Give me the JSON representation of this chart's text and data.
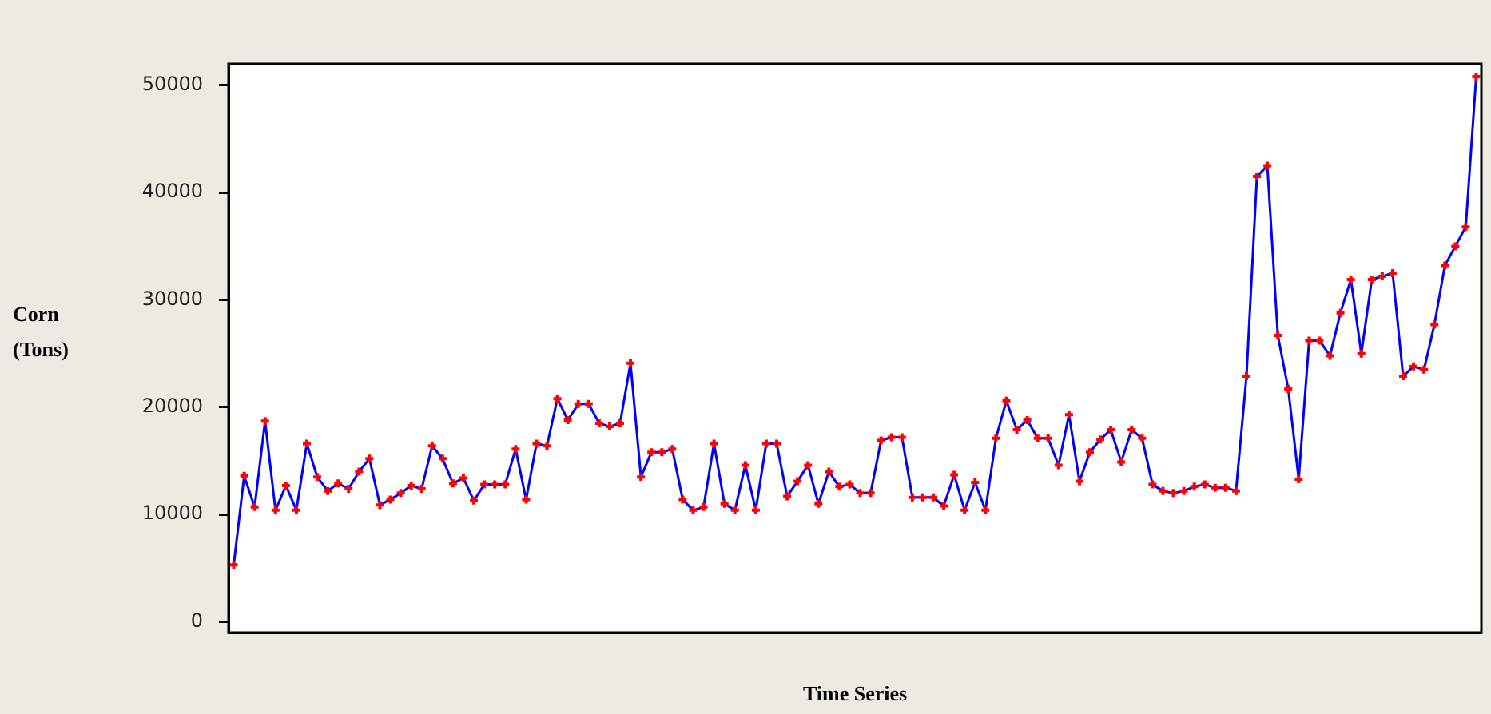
{
  "chart_data": {
    "type": "line",
    "xlabel": "Time Series",
    "ylabel": "Corn (Tons)",
    "categories": [
      null,
      null,
      null,
      null,
      null,
      null,
      null,
      null,
      null,
      null,
      null,
      null,
      null,
      null,
      null,
      null,
      null,
      null,
      null,
      null,
      null,
      null,
      null,
      null,
      null,
      null,
      null,
      null,
      null,
      null,
      null,
      null,
      null,
      null,
      null,
      null,
      null,
      null,
      null,
      null,
      null,
      null,
      null,
      null,
      null,
      null,
      null,
      null,
      null,
      null,
      null,
      null,
      null,
      null,
      null,
      null,
      null,
      null,
      null,
      null,
      null,
      null,
      null,
      null,
      null,
      null,
      null,
      null,
      null,
      null,
      null,
      null,
      null,
      null,
      null,
      null,
      null,
      null,
      null,
      null,
      null,
      null,
      null,
      null,
      null,
      null,
      null,
      null,
      null,
      null,
      null,
      null,
      null,
      null,
      null,
      null,
      null,
      null,
      null,
      null,
      null,
      null,
      null,
      null,
      null,
      null,
      null,
      null,
      null,
      null,
      null,
      null,
      null,
      null,
      null,
      null,
      null,
      null,
      null,
      null
    ],
    "series": [
      {
        "color": "#0000ff",
        "colors": [
          "#ff0000",
          "#ff0000",
          "#ff0000",
          "#ff0000",
          "#ff0000",
          "#ff0000",
          "#ff0000",
          "#ff0000",
          "#ff0000",
          "#ff0000",
          "#ff0000",
          "#ff0000",
          "#ff0000",
          "#ff0000",
          "#ff0000",
          "#ff0000",
          "#ff0000",
          "#ff0000",
          "#ff0000",
          "#ff0000",
          "#ff0000",
          "#ff0000",
          "#ff0000",
          "#ff0000",
          "#ff0000",
          "#ff0000",
          "#ff0000",
          "#ff0000",
          "#ff0000",
          "#ff0000",
          "#ff0000",
          "#ff0000",
          "#ff0000",
          "#ff0000",
          "#ff0000",
          "#ff0000",
          "#ff0000",
          "#ff0000",
          "#ff0000",
          "#ff0000",
          "#ff0000",
          "#ff0000",
          "#ff0000",
          "#ff0000",
          "#ff0000",
          "#ff0000",
          "#ff0000",
          "#ff0000",
          "#ff0000",
          "#ff0000",
          "#ff0000",
          "#ff0000",
          "#ff0000",
          "#ff0000",
          "#ff0000",
          "#ff0000",
          "#ff0000",
          "#ff0000",
          "#ff0000",
          "#ff0000",
          "#ff0000",
          "#ff0000",
          "#ff0000",
          "#ff0000",
          "#ff0000",
          "#ff0000",
          "#ff0000",
          "#ff0000",
          "#ff0000",
          "#ff0000",
          "#ff0000",
          "#ff0000",
          "#ff0000",
          "#ff0000",
          "#ff0000",
          "#ff0000",
          "#ff0000",
          "#ff0000",
          "#ff0000",
          "#ff0000",
          "#ff0000",
          "#ff0000",
          "#ff0000",
          "#ff0000",
          "#ff0000",
          "#ff0000",
          "#ff0000",
          "#ff0000",
          "#ff0000",
          "#ff0000",
          "#ff0000",
          "#ff0000",
          "#ff0000",
          "#ff0000",
          "#ff0000",
          "#ff0000",
          "#ff0000",
          "#ff0000",
          "#ff0000",
          "#ff0000",
          "#ff0000",
          "#ff0000",
          "#ff0000",
          "#ff0000",
          "#ff0000",
          "#ff0000",
          "#ff0000",
          "#ff0000",
          "#ff0000",
          "#ff0000",
          "#ff0000",
          "#ff0000",
          "#ff0000",
          "#ff0000",
          "#ff0000",
          "#ff0000",
          "#ff0000",
          "#ff0000",
          "#ff0000",
          "#ff0000"
        ],
        "values": [
          5300,
          13600,
          10700,
          18700,
          10400,
          12700,
          10400,
          16600,
          13500,
          12200,
          12900,
          12400,
          14000,
          15200,
          10900,
          11400,
          12000,
          12700,
          12400,
          16400,
          15200,
          12900,
          13400,
          11300,
          12800,
          12800,
          12800,
          16100,
          11400,
          16600,
          16400,
          20800,
          18800,
          20300,
          20300,
          18500,
          18200,
          18500,
          24100,
          13500,
          15800,
          15800,
          16100,
          11400,
          10400,
          10700,
          16600,
          11000,
          10400,
          14600,
          10400,
          16600,
          16600,
          11700,
          13100,
          14600,
          11000,
          14000,
          12600,
          12800,
          12000,
          12000,
          16900,
          17200,
          17200,
          11600,
          11600,
          11600,
          10800,
          13700,
          10400,
          13000,
          10400,
          17100,
          20600,
          17900,
          18800,
          17100,
          17100,
          14600,
          19300,
          13100,
          15800,
          17000,
          17900,
          14900,
          17900,
          17100,
          12800,
          12200,
          12000,
          12200,
          12600,
          12800,
          12500,
          12500,
          12200,
          22900,
          41500,
          42500,
          26700,
          21700,
          13300,
          26200,
          26200,
          24800,
          28800,
          31900,
          25000,
          31900,
          32200,
          32500,
          22900,
          23800,
          23500,
          27700,
          33200,
          35000,
          36800,
          50800
        ]
      }
    ],
    "ylim": [
      -1000,
      52000
    ],
    "yticks": [
      0,
      10000,
      20000,
      30000,
      40000,
      50000
    ],
    "marker": "cross",
    "line_style": "solid",
    "legend": false,
    "tick_labels": "y"
  }
}
